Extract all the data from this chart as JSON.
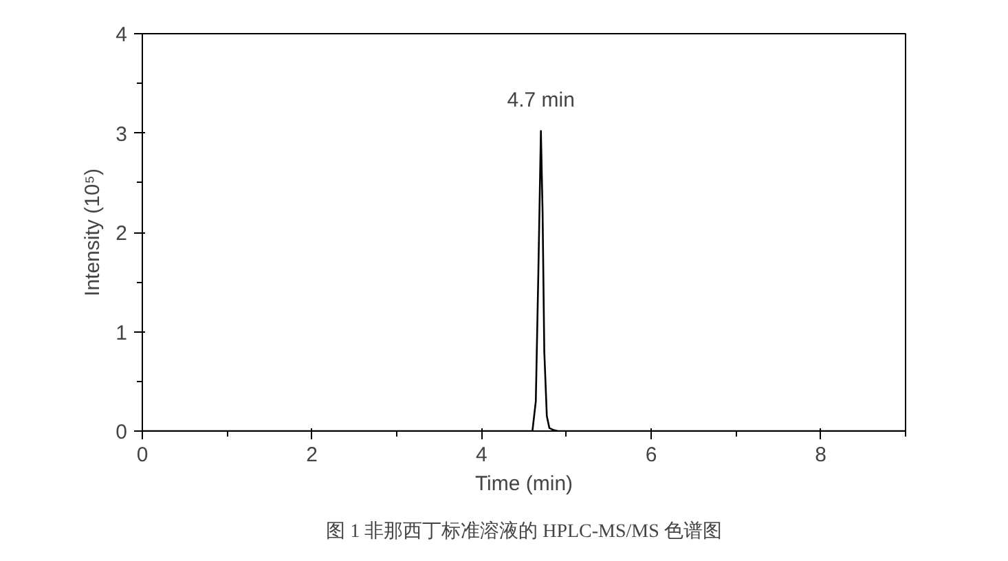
{
  "chart_data": {
    "type": "line",
    "title": "图 1 非那西丁标准溶液的 HPLC-MS/MS 色谱图",
    "xlabel": "Time (min)",
    "ylabel": "Intensity (10⁵)",
    "x": [
      0,
      1,
      2,
      3,
      4,
      4.5,
      4.6,
      4.64,
      4.67,
      4.7,
      4.72,
      4.74,
      4.77,
      4.8,
      4.85,
      4.9,
      5,
      6,
      7,
      8,
      9
    ],
    "series": [
      {
        "color": "#000000",
        "values": [
          0,
          0,
          0,
          0,
          0,
          0,
          0,
          0.3,
          1.6,
          3.02,
          2.2,
          0.8,
          0.15,
          0.03,
          0.01,
          0,
          0,
          0,
          0,
          0,
          0
        ]
      }
    ],
    "xlim": [
      0,
      9
    ],
    "ylim": [
      0,
      4
    ],
    "xticks": [
      0,
      2,
      4,
      6,
      8
    ],
    "yticks": [
      0,
      1,
      2,
      3,
      4
    ],
    "annotations": [
      {
        "text": "4.7 min",
        "x": 4.7,
        "y": 3.02
      }
    ],
    "grid": false,
    "marker": "none",
    "line_style": "solid"
  }
}
